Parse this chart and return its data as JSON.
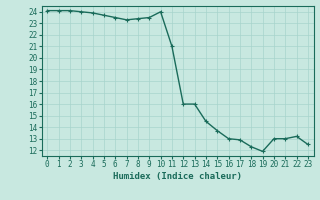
{
  "x": [
    0,
    1,
    2,
    3,
    4,
    5,
    6,
    7,
    8,
    9,
    10,
    11,
    12,
    13,
    14,
    15,
    16,
    17,
    18,
    19,
    20,
    21,
    22,
    23
  ],
  "y": [
    24.1,
    24.1,
    24.1,
    24.0,
    23.9,
    23.7,
    23.5,
    23.3,
    23.4,
    23.5,
    24.0,
    21.0,
    16.0,
    16.0,
    14.5,
    13.7,
    13.0,
    12.9,
    12.3,
    11.9,
    13.0,
    13.0,
    13.2,
    12.5
  ],
  "bg_color": "#c8e8e0",
  "line_color": "#1a6b5a",
  "marker_color": "#1a6b5a",
  "grid_color": "#a8d4cc",
  "xlabel": "Humidex (Indice chaleur)",
  "ylim": [
    11.5,
    24.5
  ],
  "xlim": [
    -0.5,
    23.5
  ],
  "yticks": [
    12,
    13,
    14,
    15,
    16,
    17,
    18,
    19,
    20,
    21,
    22,
    23,
    24
  ],
  "xticks": [
    0,
    1,
    2,
    3,
    4,
    5,
    6,
    7,
    8,
    9,
    10,
    11,
    12,
    13,
    14,
    15,
    16,
    17,
    18,
    19,
    20,
    21,
    22,
    23
  ],
  "xlabel_fontsize": 6.5,
  "tick_fontsize": 5.5,
  "line_width": 1.0,
  "marker_size": 2.5
}
